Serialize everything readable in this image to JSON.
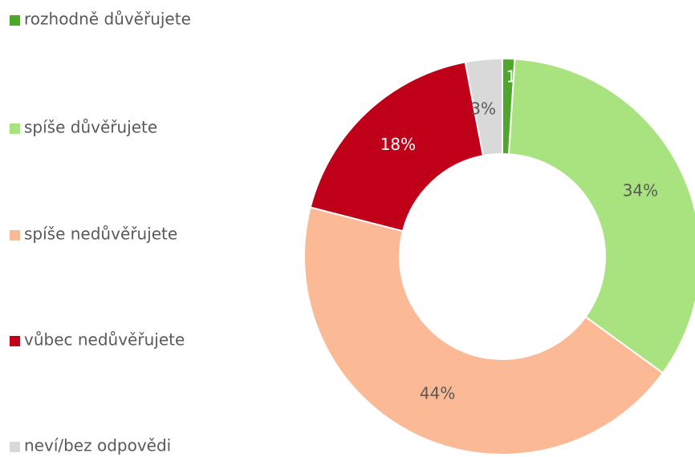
{
  "chart_data": {
    "type": "donut",
    "categories": [
      "rozhodně důvěřujete",
      "spíše důvěřujete",
      "spíše nedůvěřujete",
      "vůbec nedůvěřujete",
      "neví/bez odpovědi"
    ],
    "values": [
      1,
      34,
      44,
      18,
      3
    ],
    "value_labels": [
      "1%",
      "34%",
      "44%",
      "18%",
      "3%"
    ],
    "colors": [
      "#4ea72a",
      "#a9e37f",
      "#fbb996",
      "#c00018",
      "#d9d9d9"
    ],
    "legend": "left"
  }
}
